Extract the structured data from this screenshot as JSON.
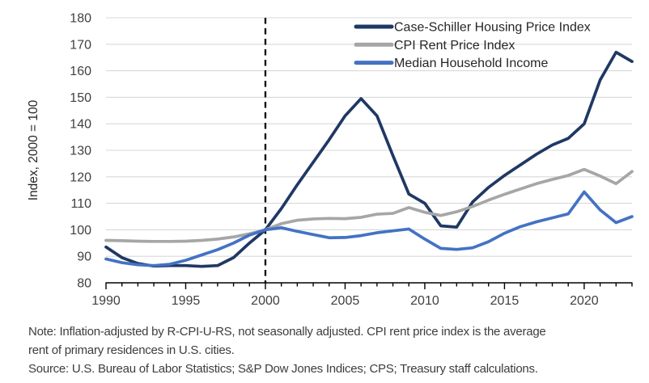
{
  "notes": {
    "line1": "Note: Inflation-adjusted by R-CPI-U-RS, not seasonally adjusted. CPI rent price index is the average",
    "line2": "rent of primary residences in U.S. cities.",
    "source": "Source: U.S. Bureau of Labor Statistics; S&P Dow Jones Indices; CPS; Treasury staff calculations."
  },
  "chart_data": {
    "type": "line",
    "title": "",
    "xlabel": "",
    "ylabel": "Index, 2000 = 100",
    "ylim": [
      80,
      180
    ],
    "yticks": [
      80,
      90,
      100,
      110,
      120,
      130,
      140,
      150,
      160,
      170,
      180
    ],
    "xlim": [
      1990,
      2023
    ],
    "xticks_major": [
      1990,
      1995,
      2000,
      2005,
      2010,
      2015,
      2020
    ],
    "minor_tick_every_years": 1,
    "grid": "horizontal",
    "grid_color": "#d9d9d9",
    "axis_color": "#000000",
    "tick_label_color": "#404040",
    "legend_text_color": "#262626",
    "legend_position": "top-right-inside",
    "annotations": [
      {
        "type": "vertical-dashed-line",
        "x": 2000,
        "color": "#000000"
      }
    ],
    "x": [
      1990,
      1991,
      1992,
      1993,
      1994,
      1995,
      1996,
      1997,
      1998,
      1999,
      2000,
      2001,
      2002,
      2003,
      2004,
      2005,
      2006,
      2007,
      2008,
      2009,
      2010,
      2011,
      2012,
      2013,
      2014,
      2015,
      2016,
      2017,
      2018,
      2019,
      2020,
      2021,
      2022,
      2023
    ],
    "series": [
      {
        "id": "case-schiller",
        "name": "Case-Schiller Housing Price Index",
        "color": "#1f3864",
        "values": [
          93.5,
          89.5,
          87.3,
          86.3,
          86.5,
          86.5,
          86.2,
          86.5,
          89.5,
          95,
          100,
          108,
          117,
          125.5,
          134,
          143,
          149.5,
          143,
          128,
          113.5,
          110,
          101.5,
          101,
          110.5,
          116,
          120.5,
          124.5,
          128.5,
          132,
          134.5,
          140,
          156.5,
          167,
          163.5
        ]
      },
      {
        "id": "cpi-rent",
        "name": "CPI Rent Price Index",
        "color": "#a6a6a6",
        "values": [
          96,
          95.9,
          95.7,
          95.6,
          95.6,
          95.7,
          96,
          96.5,
          97.3,
          98.5,
          100,
          102.3,
          103.6,
          104.1,
          104.3,
          104.2,
          104.7,
          105.9,
          106.2,
          108.4,
          106.6,
          105.4,
          106.8,
          108.8,
          111.2,
          113.4,
          115.4,
          117.4,
          119,
          120.5,
          122.8,
          120.3,
          117.4,
          122
        ]
      },
      {
        "id": "median-income",
        "name": "Median Household Income",
        "color": "#4472c4",
        "values": [
          89,
          87.6,
          86.8,
          86.5,
          87,
          88.5,
          90.5,
          92.5,
          95,
          98,
          100,
          100.8,
          99.4,
          98.2,
          97,
          97.1,
          97.8,
          98.9,
          99.6,
          100.3,
          96.5,
          93,
          92.6,
          93.2,
          95.5,
          98.7,
          101.2,
          103,
          104.5,
          106,
          114.3,
          107.5,
          102.7,
          105
        ]
      }
    ]
  }
}
